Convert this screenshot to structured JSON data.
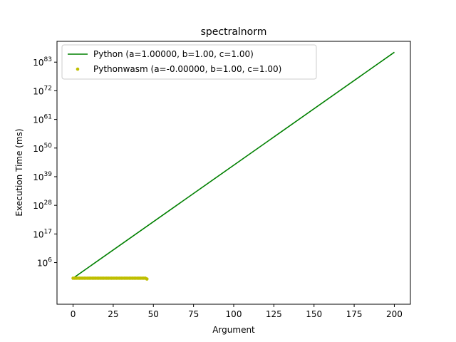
{
  "chart_data": {
    "type": "line",
    "title": "spectralnorm",
    "xlabel": "Argument",
    "ylabel": "Execution Time (ms)",
    "xlim": [
      -10,
      210
    ],
    "ylim_log10": [
      -10,
      91
    ],
    "y_scale": "log",
    "grid": false,
    "legend_placement": "top-left",
    "x_ticks": [
      0,
      25,
      50,
      75,
      100,
      125,
      150,
      175,
      200
    ],
    "x_tick_labels": [
      "0",
      "25",
      "50",
      "75",
      "100",
      "125",
      "150",
      "175",
      "200"
    ],
    "y_ticks_log10": [
      6,
      17,
      28,
      39,
      50,
      61,
      72,
      83
    ],
    "y_tick_labels": [
      {
        "base": "10",
        "exp": "6"
      },
      {
        "base": "10",
        "exp": "17"
      },
      {
        "base": "10",
        "exp": "28"
      },
      {
        "base": "10",
        "exp": "39"
      },
      {
        "base": "10",
        "exp": "50"
      },
      {
        "base": "10",
        "exp": "61"
      },
      {
        "base": "10",
        "exp": "72"
      },
      {
        "base": "10",
        "exp": "83"
      }
    ],
    "series": [
      {
        "name": "Python (a=1.00000, b=1.00, c=1.00)",
        "kind": "line",
        "color": "#008000",
        "x": [
          0,
          200
        ],
        "y_log10": [
          0,
          86.8
        ]
      },
      {
        "name": "Pythonwasm (a=-0.00000, b=1.00, c=1.00)",
        "kind": "scatter",
        "color": "#bfbf00",
        "x": [
          0,
          1,
          2,
          3,
          4,
          5,
          6,
          7,
          8,
          9,
          10,
          11,
          12,
          13,
          14,
          15,
          16,
          17,
          18,
          19,
          20,
          21,
          22,
          23,
          24,
          25,
          26,
          27,
          28,
          29,
          30,
          31,
          32,
          33,
          34,
          35,
          36,
          37,
          38,
          39,
          40,
          41,
          42,
          43,
          44,
          45,
          46
        ],
        "y_log10": [
          0,
          0,
          0,
          0,
          0,
          0,
          0,
          0,
          0,
          0,
          0,
          0,
          0,
          0,
          0,
          0,
          0,
          0,
          0,
          0,
          0,
          0,
          0,
          0,
          0,
          0,
          0,
          0,
          0,
          0,
          0,
          0,
          0,
          0,
          0,
          0,
          0,
          0,
          0,
          0,
          0,
          0,
          0,
          0,
          0,
          0,
          -0.3
        ]
      }
    ]
  }
}
